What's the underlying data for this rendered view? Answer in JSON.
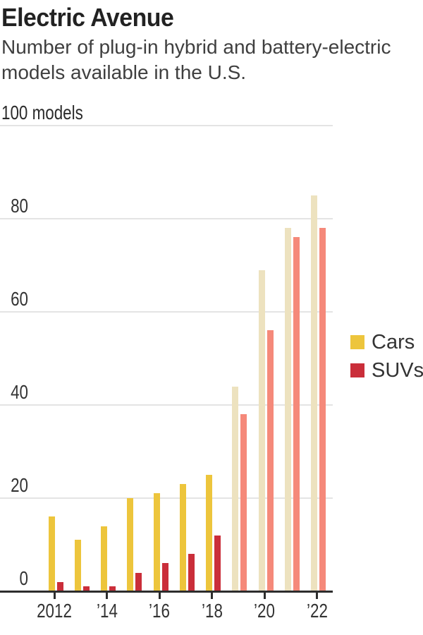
{
  "header": {
    "title": "Electric Avenue",
    "subtitle": "Number of plug-in hybrid and battery-electric models available in the U.S."
  },
  "chart_data": {
    "type": "bar",
    "title": "Electric Avenue",
    "subtitle": "Number of plug-in hybrid and battery-electric models available in the U.S.",
    "categories": [
      2012,
      2013,
      2014,
      2015,
      2016,
      2017,
      2018,
      2019,
      2020,
      2021,
      2022
    ],
    "series": [
      {
        "name": "Cars",
        "values": [
          16,
          11,
          14,
          20,
          21,
          23,
          25,
          44,
          69,
          78,
          85
        ],
        "color": "#EDC53C",
        "faded_color": "#EDE2BF"
      },
      {
        "name": "SUVs",
        "values": [
          2,
          1,
          1,
          4,
          6,
          8,
          12,
          38,
          56,
          76,
          78
        ],
        "color": "#CA2E3A",
        "faded_color": "#F5897A"
      }
    ],
    "faded_from_category": 2019,
    "ylim": [
      0,
      100
    ],
    "yticks": [
      0,
      20,
      40,
      60,
      80,
      100
    ],
    "ytop_label": "100 models",
    "xtick_years": [
      2012,
      2014,
      2016,
      2018,
      2020,
      2022
    ],
    "xtick_labels": [
      "2012",
      "’14",
      "’16",
      "’18",
      "’20",
      "’22"
    ],
    "grid": "horizontal",
    "legend_position": "right",
    "colors": {
      "gridline": "#E4E4E4",
      "axis": "#2D2D2D",
      "title_text": "#222222",
      "subtitle_text": "#3F3F3F",
      "label_text": "#333333"
    }
  },
  "legend": {
    "items": [
      {
        "label": "Cars",
        "color": "#EDC53C"
      },
      {
        "label": "SUVs",
        "color": "#CA2E3A"
      }
    ]
  }
}
